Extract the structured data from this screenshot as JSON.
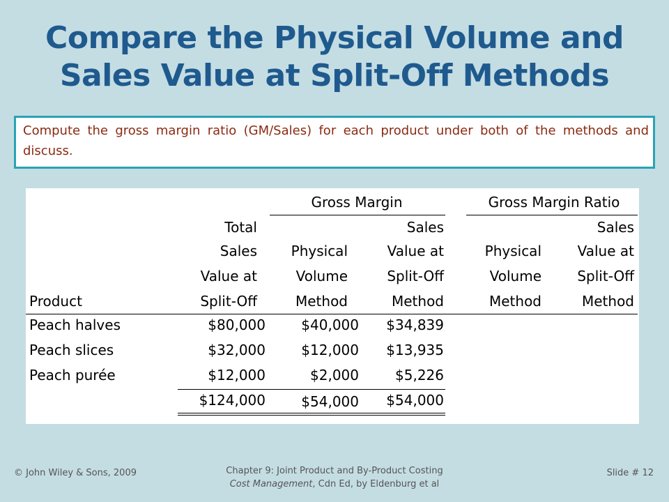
{
  "slide": {
    "title_line1": "Compare the Physical Volume and",
    "title_line2": "Sales Value at Split-Off Methods",
    "instruction": "Compute the gross margin ratio (GM/Sales) for each product under both of the methods and discuss."
  },
  "table": {
    "group_gross_margin": "Gross Margin",
    "group_gross_margin_ratio": "Gross Margin Ratio",
    "col_product": "Product",
    "col_total_sales": [
      "Total",
      "Sales",
      "Value at",
      "Split-Off"
    ],
    "col_gm_physical": [
      "Physical",
      "Volume",
      "Method"
    ],
    "col_gm_sales_value": [
      "Sales",
      "Value at",
      "Split-Off",
      "Method"
    ],
    "col_ratio_physical": [
      "Physical",
      "Volume",
      "Method"
    ],
    "col_ratio_sales_value": [
      "Sales",
      "Value at",
      "Split-Off",
      "Method"
    ],
    "rows": [
      {
        "product": "Peach halves",
        "total_sales": "$80,000",
        "gm_physical": "$40,000",
        "gm_sales_value": "$34,839"
      },
      {
        "product": "Peach slices",
        "total_sales": "$32,000",
        "gm_physical": "$12,000",
        "gm_sales_value": "$13,935"
      },
      {
        "product": "Peach purée",
        "total_sales": "$12,000",
        "gm_physical": "$2,000",
        "gm_sales_value": "$5,226"
      }
    ],
    "totals": {
      "total_sales": "$124,000",
      "gm_physical": "$54,000",
      "gm_sales_value": "$54,000"
    }
  },
  "footer": {
    "copyright": "© John Wiley & Sons, 2009",
    "chapter": "Chapter 9: Joint Product and By-Product Costing",
    "book_title": "Cost Management",
    "book_rest": ", Cdn Ed, by Eldenburg et al",
    "slide_number": "Slide #  12"
  }
}
